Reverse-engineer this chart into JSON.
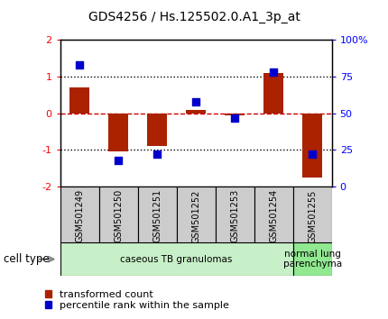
{
  "title": "GDS4256 / Hs.125502.0.A1_3p_at",
  "samples": [
    "GSM501249",
    "GSM501250",
    "GSM501251",
    "GSM501252",
    "GSM501253",
    "GSM501254",
    "GSM501255"
  ],
  "transformed_count": [
    0.7,
    -1.05,
    -0.9,
    0.1,
    -0.05,
    1.1,
    -1.75
  ],
  "percentile_rank": [
    83,
    18,
    22,
    58,
    47,
    78,
    22
  ],
  "ylim_left": [
    -2,
    2
  ],
  "ylim_right": [
    0,
    100
  ],
  "yticks_left": [
    -2,
    -1,
    0,
    1,
    2
  ],
  "yticks_right": [
    0,
    25,
    50,
    75,
    100
  ],
  "ytick_labels_right": [
    "0",
    "25",
    "50",
    "75",
    "100%"
  ],
  "bar_color": "#aa2200",
  "dot_color": "#0000cc",
  "hline_zero_color": "#cc0000",
  "hline_dot_color": "#000000",
  "label_bg_color": "#cccccc",
  "cell_groups": [
    {
      "label": "caseous TB granulomas",
      "samples": [
        0,
        1,
        2,
        3,
        4,
        5
      ],
      "color": "#c8f0c8"
    },
    {
      "label": "normal lung\nparenchyma",
      "samples": [
        6
      ],
      "color": "#90e890"
    }
  ],
  "legend_bar_label": "transformed count",
  "legend_dot_label": "percentile rank within the sample",
  "cell_type_label": "cell type",
  "background_color": "#ffffff",
  "bar_width": 0.5
}
